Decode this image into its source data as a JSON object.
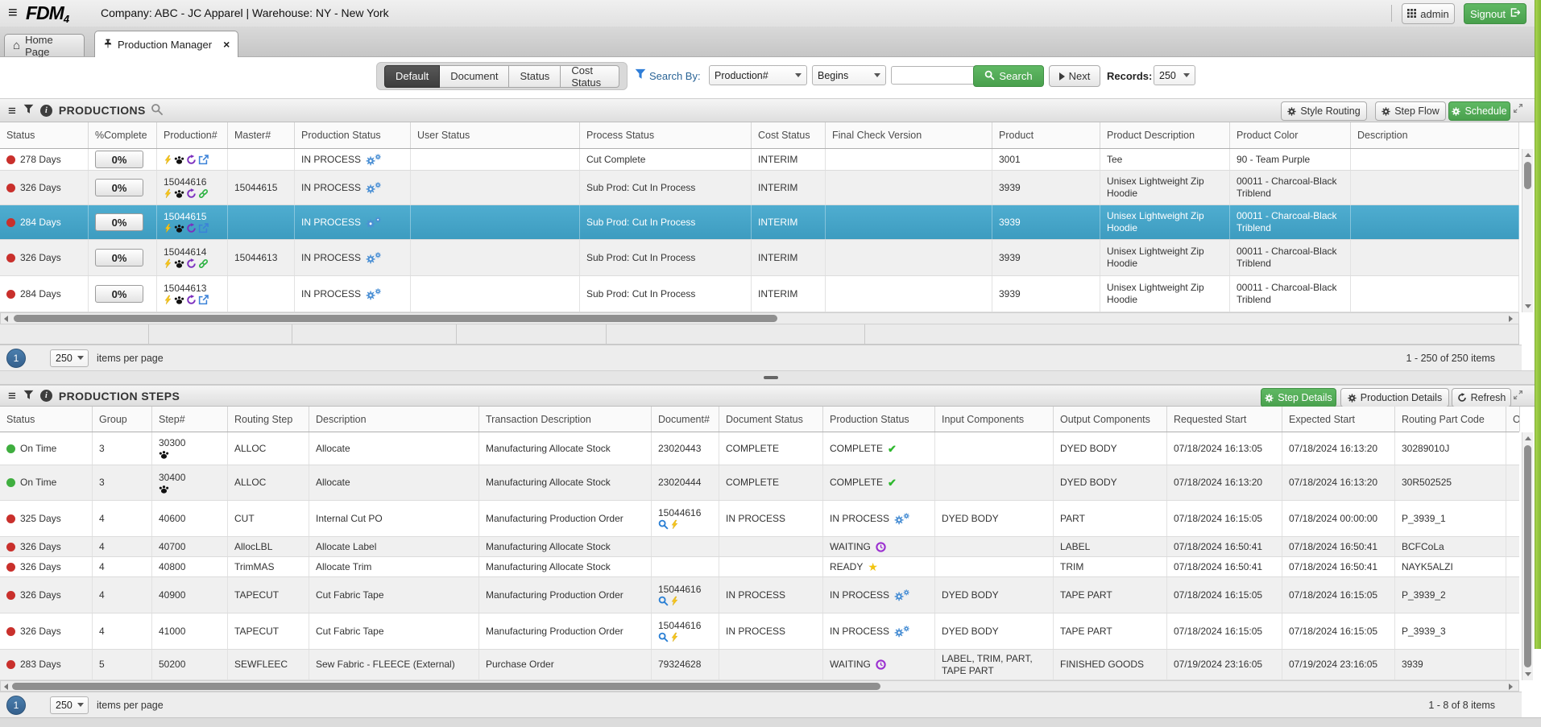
{
  "topbar": {
    "logo_text": "FDM",
    "logo_sub": "4",
    "context_text": "Company: ABC - JC Apparel | Warehouse: NY - New York",
    "admin_button": "admin",
    "signout_button": "Signout"
  },
  "tabs": [
    {
      "label": "Home Page",
      "icon": "home",
      "active": false
    },
    {
      "label": "Production Manager",
      "icon": "pin",
      "active": true,
      "closable": true
    }
  ],
  "toolbar": {
    "view_buttons": [
      "Default",
      "Document",
      "Status",
      "Cost Status"
    ],
    "active_view": "Default",
    "search_by_label": "Search By:",
    "search_field": "Production#",
    "search_operator": "Begins",
    "search_value": "",
    "search_button": "Search",
    "next_button": "Next",
    "records_label": "Records:",
    "records_value": "250"
  },
  "colors": {
    "accent_green": "#5cb85c",
    "selected_row": "#44a3c5",
    "status_red": "#c9302c",
    "status_green": "#3fae3f",
    "gear_blue": "#4a8fd4",
    "waiting_purple": "#9b30d0",
    "ready_yellow": "#f2c40f",
    "link_green": "#2fb344",
    "history_purple": "#7b2fbe",
    "bolt_yellow": "#f7c51c",
    "edge_strip_green": "#8dc63f"
  },
  "productions": {
    "title": "PRODUCTIONS",
    "actions": [
      {
        "label": "Style Routing",
        "variant": "default",
        "icon": "gear"
      },
      {
        "label": "Step Flow",
        "variant": "default",
        "icon": "gear"
      },
      {
        "label": "Schedule",
        "variant": "green",
        "icon": "gear"
      }
    ],
    "columns": [
      "Status",
      "%Complete",
      "Production#",
      "Master#",
      "Production Status",
      "User Status",
      "Process Status",
      "Cost Status",
      "Final Check Version",
      "Product",
      "Product Description",
      "Product Color",
      "Description"
    ],
    "rows": [
      {
        "status": "278 Days",
        "status_color": "red",
        "complete": "0%",
        "production": "",
        "production_icons": [
          "bolt",
          "paw",
          "history",
          "external"
        ],
        "master": "",
        "production_status": "IN PROCESS",
        "production_status_icon": "gears",
        "user_status": "",
        "process_status": "Cut Complete",
        "cost_status": "INTERIM",
        "final_check_version": "",
        "product": "3001",
        "product_description": "Tee",
        "product_color": "90 - Team Purple",
        "description": "",
        "selected": false
      },
      {
        "status": "326 Days",
        "status_color": "red",
        "complete": "0%",
        "production": "15044616",
        "production_icons": [
          "bolt",
          "paw",
          "history",
          "link"
        ],
        "master": "15044615",
        "production_status": "IN PROCESS",
        "production_status_icon": "gears",
        "user_status": "",
        "process_status": "Sub Prod: Cut In Process",
        "cost_status": "INTERIM",
        "final_check_version": "",
        "product": "3939",
        "product_description": "Unisex Lightweight Zip Hoodie",
        "product_color": "00011 - Charcoal-Black Triblend",
        "description": "",
        "selected": false
      },
      {
        "status": "284 Days",
        "status_color": "red",
        "complete": "0%",
        "production": "15044615",
        "production_icons": [
          "bolt",
          "paw",
          "history",
          "external"
        ],
        "master": "",
        "production_status": "IN PROCESS",
        "production_status_icon": "gears",
        "user_status": "",
        "process_status": "Sub Prod: Cut In Process",
        "cost_status": "INTERIM",
        "final_check_version": "",
        "product": "3939",
        "product_description": "Unisex Lightweight Zip Hoodie",
        "product_color": "00011 - Charcoal-Black Triblend",
        "description": "",
        "selected": true
      },
      {
        "status": "326 Days",
        "status_color": "red",
        "complete": "0%",
        "production": "15044614",
        "production_icons": [
          "bolt",
          "paw",
          "history",
          "link"
        ],
        "master": "15044613",
        "production_status": "IN PROCESS",
        "production_status_icon": "gears",
        "user_status": "",
        "process_status": "Sub Prod: Cut In Process",
        "cost_status": "INTERIM",
        "final_check_version": "",
        "product": "3939",
        "product_description": "Unisex Lightweight Zip Hoodie",
        "product_color": "00011 - Charcoal-Black Triblend",
        "description": "",
        "selected": false
      },
      {
        "status": "284 Days",
        "status_color": "red",
        "complete": "0%",
        "production": "15044613",
        "production_icons": [
          "bolt",
          "paw",
          "history",
          "external"
        ],
        "master": "",
        "production_status": "IN PROCESS",
        "production_status_icon": "gears",
        "user_status": "",
        "process_status": "Sub Prod: Cut In Process",
        "cost_status": "INTERIM",
        "final_check_version": "",
        "product": "3939",
        "product_description": "Unisex Lightweight Zip Hoodie",
        "product_color": "00011 - Charcoal-Black Triblend",
        "description": "",
        "selected": false
      }
    ],
    "pager": {
      "page": "1",
      "page_size": "250",
      "items_label": "items per page",
      "range": "1 - 250 of 250 items"
    }
  },
  "steps": {
    "title": "PRODUCTION STEPS",
    "actions": [
      {
        "label": "Step Details",
        "variant": "green",
        "icon": "gear"
      },
      {
        "label": "Production Details",
        "variant": "default",
        "icon": "gear"
      },
      {
        "label": "Refresh",
        "variant": "default",
        "icon": "refresh"
      }
    ],
    "columns": [
      "Status",
      "Group",
      "Step#",
      "Routing Step",
      "Description",
      "Transaction Description",
      "Document#",
      "Document Status",
      "Production Status",
      "Input Components",
      "Output Components",
      "Requested Start",
      "Expected Start",
      "Routing Part Code",
      "Op"
    ],
    "rows": [
      {
        "status": "On Time",
        "status_color": "green",
        "group": "3",
        "step": "30300",
        "step_icons": [
          "paw"
        ],
        "routing_step": "ALLOC",
        "description": "Allocate",
        "transaction_description": "Manufacturing Allocate Stock",
        "document": "23020443",
        "document_icons": [],
        "document_status": "COMPLETE",
        "production_status": "COMPLETE",
        "production_status_icon": "check",
        "input_components": "",
        "output_components": "DYED BODY",
        "requested_start": "07/18/2024 16:13:05",
        "expected_start": "07/18/2024 16:13:20",
        "routing_part_code": "30289010J"
      },
      {
        "status": "On Time",
        "status_color": "green",
        "group": "3",
        "step": "30400",
        "step_icons": [
          "paw"
        ],
        "routing_step": "ALLOC",
        "description": "Allocate",
        "transaction_description": "Manufacturing Allocate Stock",
        "document": "23020444",
        "document_icons": [],
        "document_status": "COMPLETE",
        "production_status": "COMPLETE",
        "production_status_icon": "check",
        "input_components": "",
        "output_components": "DYED BODY",
        "requested_start": "07/18/2024 16:13:20",
        "expected_start": "07/18/2024 16:13:20",
        "routing_part_code": "30R502525"
      },
      {
        "status": "325 Days",
        "status_color": "red",
        "group": "4",
        "step": "40600",
        "step_icons": [],
        "routing_step": "CUT",
        "description": "Internal Cut PO",
        "transaction_description": "Manufacturing Production Order",
        "document": "15044616",
        "document_icons": [
          "search",
          "bolt"
        ],
        "document_status": "IN PROCESS",
        "production_status": "IN PROCESS",
        "production_status_icon": "gears",
        "input_components": "DYED BODY",
        "output_components": "PART",
        "requested_start": "07/18/2024 16:15:05",
        "expected_start": "07/18/2024 00:00:00",
        "routing_part_code": "P_3939_1"
      },
      {
        "status": "326 Days",
        "status_color": "red",
        "group": "4",
        "step": "40700",
        "step_icons": [],
        "routing_step": "AllocLBL",
        "description": "Allocate Label",
        "transaction_description": "Manufacturing Allocate Stock",
        "document": "",
        "document_icons": [],
        "document_status": "",
        "production_status": "WAITING",
        "production_status_icon": "clock",
        "input_components": "",
        "output_components": "LABEL",
        "requested_start": "07/18/2024 16:50:41",
        "expected_start": "07/18/2024 16:50:41",
        "routing_part_code": "BCFCoLa"
      },
      {
        "status": "326 Days",
        "status_color": "red",
        "group": "4",
        "step": "40800",
        "step_icons": [],
        "routing_step": "TrimMAS",
        "description": "Allocate Trim",
        "transaction_description": "Manufacturing Allocate Stock",
        "document": "",
        "document_icons": [],
        "document_status": "",
        "production_status": "READY",
        "production_status_icon": "star",
        "input_components": "",
        "output_components": "TRIM",
        "requested_start": "07/18/2024 16:50:41",
        "expected_start": "07/18/2024 16:50:41",
        "routing_part_code": "NAYK5ALZI"
      },
      {
        "status": "326 Days",
        "status_color": "red",
        "group": "4",
        "step": "40900",
        "step_icons": [],
        "routing_step": "TAPECUT",
        "description": "Cut Fabric Tape",
        "transaction_description": "Manufacturing Production Order",
        "document": "15044616",
        "document_icons": [
          "search",
          "bolt"
        ],
        "document_status": "IN PROCESS",
        "production_status": "IN PROCESS",
        "production_status_icon": "gears",
        "input_components": "DYED BODY",
        "output_components": "TAPE PART",
        "requested_start": "07/18/2024 16:15:05",
        "expected_start": "07/18/2024 16:15:05",
        "routing_part_code": "P_3939_2"
      },
      {
        "status": "326 Days",
        "status_color": "red",
        "group": "4",
        "step": "41000",
        "step_icons": [],
        "routing_step": "TAPECUT",
        "description": "Cut Fabric Tape",
        "transaction_description": "Manufacturing Production Order",
        "document": "15044616",
        "document_icons": [
          "search",
          "bolt"
        ],
        "document_status": "IN PROCESS",
        "production_status": "IN PROCESS",
        "production_status_icon": "gears",
        "input_components": "DYED BODY",
        "output_components": "TAPE PART",
        "requested_start": "07/18/2024 16:15:05",
        "expected_start": "07/18/2024 16:15:05",
        "routing_part_code": "P_3939_3"
      },
      {
        "status": "283 Days",
        "status_color": "red",
        "group": "5",
        "step": "50200",
        "step_icons": [],
        "routing_step": "SEWFLEEC",
        "description": "Sew Fabric - FLEECE (External)",
        "transaction_description": "Purchase Order",
        "document": "79324628",
        "document_icons": [],
        "document_status": "",
        "production_status": "WAITING",
        "production_status_icon": "clock",
        "input_components": "LABEL, TRIM, PART, TAPE PART",
        "output_components": "FINISHED GOODS",
        "requested_start": "07/19/2024 23:16:05",
        "expected_start": "07/19/2024 23:16:05",
        "routing_part_code": "3939"
      }
    ],
    "pager": {
      "page": "1",
      "page_size": "250",
      "items_label": "items per page",
      "range": "1 - 8 of 8 items"
    }
  }
}
